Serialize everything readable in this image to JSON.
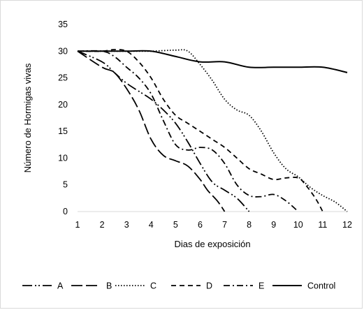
{
  "chart_data": {
    "type": "line",
    "title": "",
    "xlabel": "Dias de exposición",
    "ylabel": "Número de Hormigas vivas",
    "xlim": [
      1,
      12
    ],
    "ylim": [
      0,
      35
    ],
    "x_ticks": [
      1,
      2,
      3,
      4,
      5,
      6,
      7,
      8,
      9,
      10,
      11,
      12
    ],
    "y_ticks": [
      0,
      5,
      10,
      15,
      20,
      25,
      30,
      35
    ],
    "grid": false,
    "legend_position": "bottom",
    "series": [
      {
        "name": "A",
        "dash": "long-dash-dot-dot",
        "x": [
          1,
          2,
          2.5,
          3,
          3.5,
          4,
          4.5,
          5,
          5.5,
          6,
          6.5,
          7,
          7.5,
          8
        ],
        "y": [
          30,
          28,
          26,
          24,
          22.5,
          21,
          19,
          16.5,
          13,
          9,
          5.5,
          4,
          2.5,
          0
        ]
      },
      {
        "name": "B",
        "dash": "long-dash",
        "x": [
          1,
          2,
          2.5,
          3,
          3.5,
          4,
          4.5,
          5,
          5.5,
          6,
          6.3,
          6.7,
          7
        ],
        "y": [
          30,
          27,
          26,
          23,
          19,
          13.5,
          10.5,
          9.5,
          8.5,
          6,
          4,
          2,
          0
        ]
      },
      {
        "name": "C",
        "dash": "dotted",
        "x": [
          1,
          2,
          3,
          4,
          5,
          5.5,
          6,
          6.5,
          7,
          7.5,
          8,
          8.5,
          9,
          9.5,
          10,
          10.5,
          11,
          11.5,
          12
        ],
        "y": [
          30,
          30,
          30,
          30,
          30.2,
          30,
          27.5,
          24.5,
          21,
          19,
          18,
          15,
          11,
          8,
          6.5,
          4.5,
          3,
          1.8,
          0
        ]
      },
      {
        "name": "D",
        "dash": "dash",
        "x": [
          1,
          2,
          2.5,
          3,
          3.5,
          4,
          4.5,
          5,
          5.5,
          6,
          6.5,
          7,
          7.5,
          8,
          8.5,
          9,
          9.5,
          10,
          10.3,
          10.7,
          11
        ],
        "y": [
          30,
          30,
          30.3,
          30,
          28,
          25,
          21,
          18,
          16.5,
          15,
          13.5,
          12,
          10,
          8,
          7,
          6,
          6.3,
          6.3,
          5,
          2.5,
          0
        ]
      },
      {
        "name": "E",
        "dash": "dash-dot",
        "x": [
          1,
          2,
          2.5,
          3,
          3.5,
          4,
          4.5,
          5,
          5.5,
          6,
          6.5,
          7,
          7.5,
          8,
          8.5,
          9,
          9.5,
          10
        ],
        "y": [
          30,
          30,
          29,
          27,
          25,
          22,
          17,
          12.5,
          11.5,
          12,
          11.5,
          9,
          5,
          3,
          2.8,
          3.2,
          2,
          0
        ]
      },
      {
        "name": "Control",
        "dash": "solid",
        "x": [
          1,
          2,
          3,
          4,
          5,
          6,
          7,
          8,
          9,
          10,
          11,
          12
        ],
        "y": [
          30,
          30,
          30,
          30,
          29,
          28,
          28,
          27,
          27,
          27,
          27,
          26
        ]
      }
    ]
  },
  "colors": {
    "line": "#000000",
    "axis": "#d9d9d9",
    "border": "#d9d9d9"
  }
}
